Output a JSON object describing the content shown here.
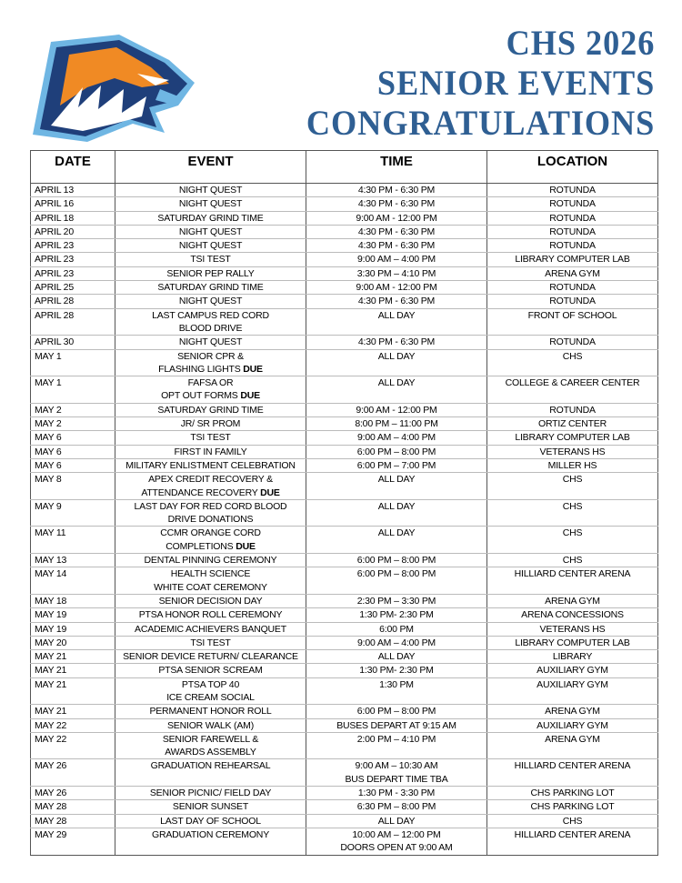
{
  "header": {
    "title_lines": [
      "CHS 2026",
      "SENIOR EVENTS",
      "CONGRATULATIONS"
    ],
    "logo": "tiger-mascot-logo"
  },
  "colors": {
    "title": "#2f5f93",
    "logo_navy": "#1f3f7a",
    "logo_orange": "#f08a24",
    "logo_light_blue": "#6fb6e3"
  },
  "columns": [
    "DATE",
    "EVENT",
    "TIME",
    "LOCATION"
  ],
  "rows": [
    {
      "date": "APRIL 13",
      "event": [
        "NIGHT QUEST"
      ],
      "time": [
        "4:30 PM - 6:30 PM"
      ],
      "location": "ROTUNDA"
    },
    {
      "date": "APRIL 16",
      "event": [
        "NIGHT QUEST"
      ],
      "time": [
        "4:30 PM - 6:30 PM"
      ],
      "location": "ROTUNDA"
    },
    {
      "date": "APRIL 18",
      "event": [
        "SATURDAY GRIND TIME"
      ],
      "time": [
        "9:00 AM - 12:00 PM"
      ],
      "location": "ROTUNDA"
    },
    {
      "date": "APRIL 20",
      "event": [
        "NIGHT QUEST"
      ],
      "time": [
        "4:30 PM - 6:30 PM"
      ],
      "location": "ROTUNDA"
    },
    {
      "date": "APRIL 23",
      "event": [
        "NIGHT QUEST"
      ],
      "time": [
        "4:30 PM - 6:30 PM"
      ],
      "location": "ROTUNDA"
    },
    {
      "date": "APRIL 23",
      "event": [
        "TSI TEST"
      ],
      "time": [
        "9:00 AM – 4:00 PM"
      ],
      "location": "LIBRARY COMPUTER LAB"
    },
    {
      "date": "APRIL 23",
      "event": [
        "SENIOR PEP RALLY"
      ],
      "time": [
        "3:30 PM – 4:10 PM"
      ],
      "location": "ARENA GYM"
    },
    {
      "date": "APRIL 25",
      "event": [
        "SATURDAY GRIND TIME"
      ],
      "time": [
        "9:00 AM - 12:00 PM"
      ],
      "location": "ROTUNDA"
    },
    {
      "date": "APRIL 28",
      "event": [
        "NIGHT QUEST"
      ],
      "time": [
        "4:30 PM - 6:30 PM"
      ],
      "location": "ROTUNDA"
    },
    {
      "date": "APRIL 28",
      "event": [
        "LAST CAMPUS RED CORD",
        "BLOOD DRIVE"
      ],
      "time": [
        "ALL DAY"
      ],
      "location": "FRONT OF SCHOOL"
    },
    {
      "date": "APRIL 30",
      "event": [
        "NIGHT QUEST"
      ],
      "time": [
        "4:30 PM - 6:30 PM"
      ],
      "location": "ROTUNDA"
    },
    {
      "date": "MAY 1",
      "event": [
        "SENIOR CPR &",
        "FLASHING LIGHTS"
      ],
      "due": "DUE",
      "time": [
        "ALL DAY"
      ],
      "location": "CHS"
    },
    {
      "date": "MAY 1",
      "event": [
        "FAFSA OR",
        "OPT OUT FORMS"
      ],
      "due": "DUE",
      "time": [
        "ALL DAY"
      ],
      "location": "COLLEGE & CAREER CENTER"
    },
    {
      "date": "MAY 2",
      "event": [
        "SATURDAY GRIND TIME"
      ],
      "time": [
        "9:00 AM - 12:00 PM"
      ],
      "location": "ROTUNDA"
    },
    {
      "date": "MAY 2",
      "event": [
        "JR/ SR PROM"
      ],
      "time": [
        "8:00 PM – 11:00 PM"
      ],
      "location": "ORTIZ CENTER"
    },
    {
      "date": "MAY 6",
      "event": [
        "TSI TEST"
      ],
      "time": [
        "9:00 AM – 4:00 PM"
      ],
      "location": "LIBRARY COMPUTER LAB"
    },
    {
      "date": "MAY 6",
      "event": [
        "FIRST IN FAMILY"
      ],
      "time": [
        "6:00 PM – 8:00 PM"
      ],
      "location": "VETERANS HS"
    },
    {
      "date": "MAY 6",
      "event": [
        "MILITARY ENLISTMENT CELEBRATION"
      ],
      "time": [
        "6:00 PM – 7:00 PM"
      ],
      "location": "MILLER HS"
    },
    {
      "date": "MAY 8",
      "event": [
        "APEX CREDIT RECOVERY &",
        "ATTENDANCE RECOVERY"
      ],
      "due": "DUE",
      "time": [
        "ALL DAY"
      ],
      "location": "CHS"
    },
    {
      "date": "MAY 9",
      "event": [
        "LAST DAY FOR RED CORD BLOOD",
        "DRIVE DONATIONS"
      ],
      "time": [
        "ALL DAY"
      ],
      "location": "CHS"
    },
    {
      "date": "MAY 11",
      "event": [
        "CCMR ORANGE CORD",
        "COMPLETIONS"
      ],
      "due": "DUE",
      "time": [
        "ALL DAY"
      ],
      "location": "CHS"
    },
    {
      "date": "MAY 13",
      "event": [
        "DENTAL PINNING CEREMONY"
      ],
      "time": [
        "6:00 PM – 8:00 PM"
      ],
      "location": "CHS"
    },
    {
      "date": "MAY 14",
      "event": [
        "HEALTH SCIENCE",
        "WHITE COAT CEREMONY"
      ],
      "time": [
        "6:00 PM – 8:00 PM"
      ],
      "location": "HILLIARD CENTER ARENA"
    },
    {
      "date": "MAY 18",
      "event": [
        "SENIOR DECISION DAY"
      ],
      "time": [
        "2:30 PM – 3:30 PM"
      ],
      "location": "ARENA GYM"
    },
    {
      "date": "MAY 19",
      "event": [
        "PTSA HONOR ROLL CEREMONY"
      ],
      "time": [
        "1:30 PM- 2:30 PM"
      ],
      "location": "ARENA CONCESSIONS"
    },
    {
      "date": "MAY 19",
      "event": [
        "ACADEMIC ACHIEVERS BANQUET"
      ],
      "time": [
        "6:00 PM"
      ],
      "location": "VETERANS HS"
    },
    {
      "date": "MAY 20",
      "event": [
        "TSI TEST"
      ],
      "time": [
        "9:00 AM – 4:00 PM"
      ],
      "location": "LIBRARY COMPUTER LAB"
    },
    {
      "date": "MAY 21",
      "event": [
        "SENIOR DEVICE RETURN/ CLEARANCE"
      ],
      "time": [
        "ALL DAY"
      ],
      "location": "LIBRARY"
    },
    {
      "date": "MAY 21",
      "event": [
        "PTSA SENIOR SCREAM"
      ],
      "time": [
        "1:30 PM- 2:30 PM"
      ],
      "location": "AUXILIARY GYM"
    },
    {
      "date": "MAY 21",
      "event": [
        "PTSA TOP 40",
        "ICE CREAM SOCIAL"
      ],
      "time": [
        "1:30 PM"
      ],
      "location": "AUXILIARY GYM"
    },
    {
      "date": "MAY 21",
      "event": [
        "PERMANENT HONOR ROLL"
      ],
      "time": [
        "6:00 PM – 8:00 PM"
      ],
      "location": "ARENA GYM"
    },
    {
      "date": "MAY 22",
      "event": [
        "SENIOR WALK (AM)"
      ],
      "time": [
        "BUSES DEPART AT 9:15 AM"
      ],
      "location": "AUXILIARY GYM"
    },
    {
      "date": "MAY 22",
      "event": [
        "SENIOR FAREWELL &",
        "AWARDS ASSEMBLY"
      ],
      "time": [
        "2:00 PM – 4:10 PM"
      ],
      "location": "ARENA GYM"
    },
    {
      "date": "MAY 26",
      "event": [
        "GRADUATION REHEARSAL"
      ],
      "time": [
        "9:00 AM – 10:30 AM",
        "BUS DEPART TIME TBA"
      ],
      "location": "HILLIARD CENTER ARENA"
    },
    {
      "date": "MAY 26",
      "event": [
        "SENIOR PICNIC/ FIELD DAY"
      ],
      "time": [
        "1:30 PM - 3:30 PM"
      ],
      "location": "CHS PARKING LOT"
    },
    {
      "date": "MAY 28",
      "event": [
        "SENIOR SUNSET"
      ],
      "time": [
        "6:30 PM – 8:00 PM"
      ],
      "location": "CHS PARKING LOT"
    },
    {
      "date": "MAY 28",
      "event": [
        "LAST DAY OF SCHOOL"
      ],
      "time": [
        "ALL DAY"
      ],
      "location": "CHS"
    },
    {
      "date": "MAY 29",
      "event": [
        "GRADUATION CEREMONY"
      ],
      "time": [
        "10:00 AM – 12:00 PM",
        "DOORS OPEN AT 9:00 AM"
      ],
      "location": "HILLIARD CENTER ARENA"
    }
  ]
}
